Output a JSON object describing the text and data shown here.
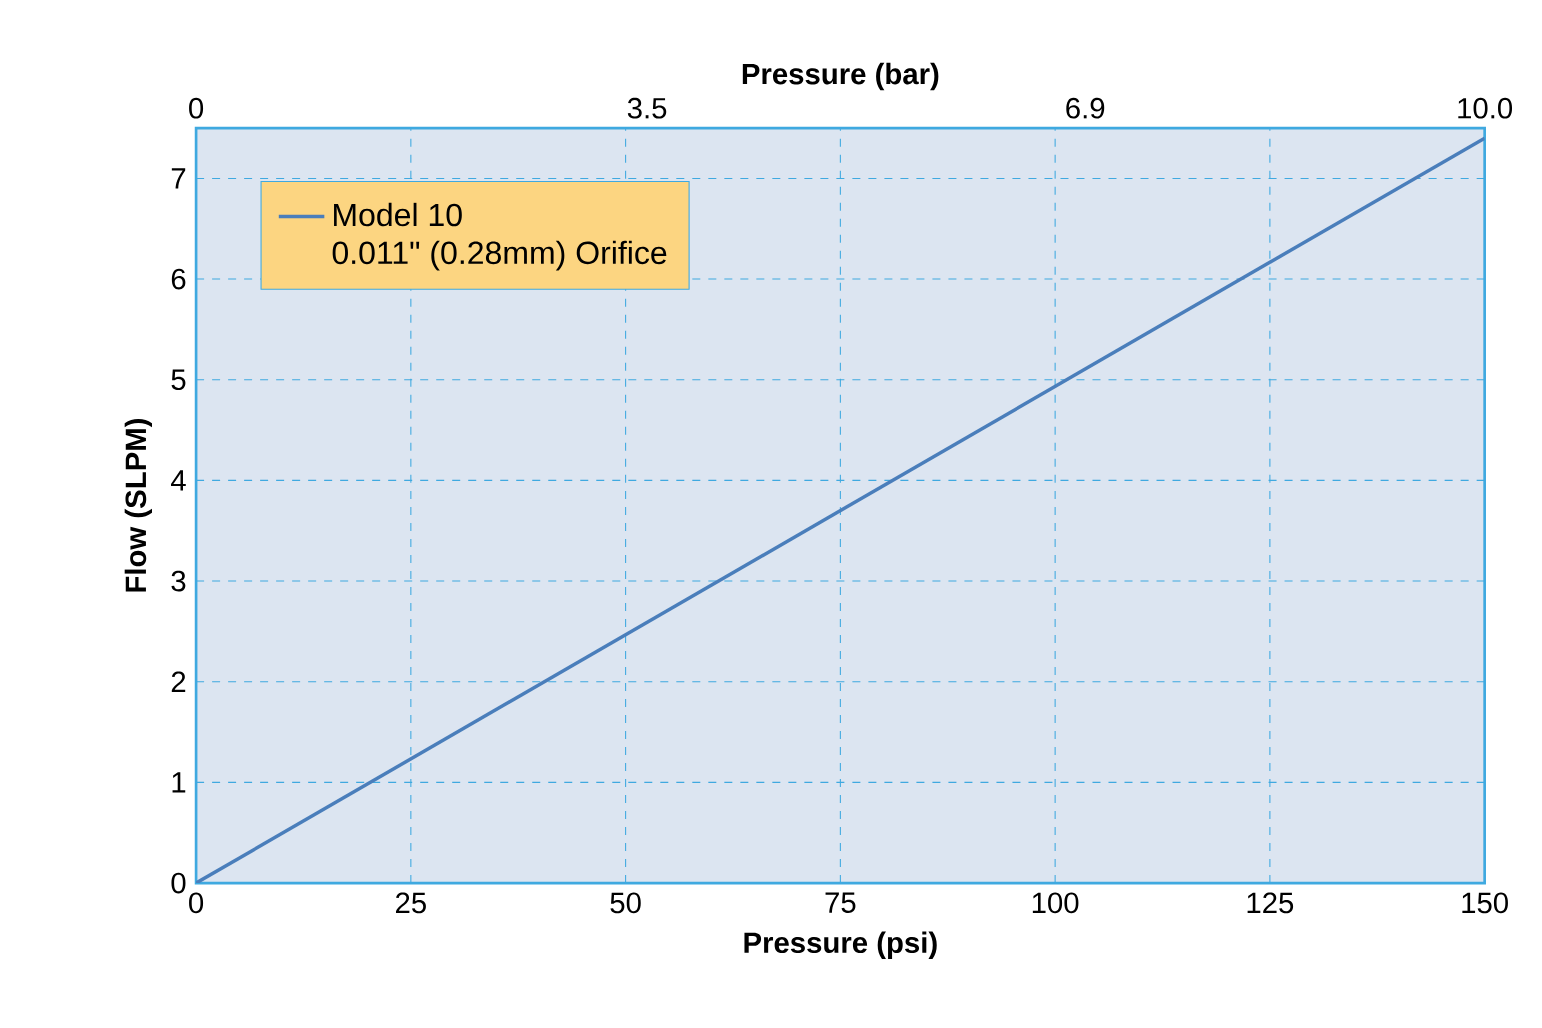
{
  "chart_data": {
    "type": "line",
    "xlabel": "Pressure (psi)",
    "ylabel": "Flow (SLPM)",
    "x2label": "Pressure (bar)",
    "series": [
      {
        "name": "Model 10",
        "color": "#4a7ebb",
        "x": [
          0,
          150
        ],
        "values": [
          0,
          7.4
        ]
      }
    ],
    "annotations": [
      "0.011\" (0.28mm) Orifice"
    ],
    "xlim": [
      0,
      150
    ],
    "xticks": [
      0,
      25,
      50,
      75,
      100,
      125,
      150
    ],
    "ylim": [
      0,
      7.5
    ],
    "yticks": [
      0,
      1,
      2,
      3,
      4,
      5,
      6,
      7
    ],
    "x2lim": [
      0,
      10.0
    ],
    "x2ticks": [
      0,
      3.5,
      6.9,
      {
        "value": 10.0,
        "label": "10.0"
      }
    ],
    "grid": true,
    "legend": "top left",
    "marker": "none",
    "line_style": "solid"
  }
}
